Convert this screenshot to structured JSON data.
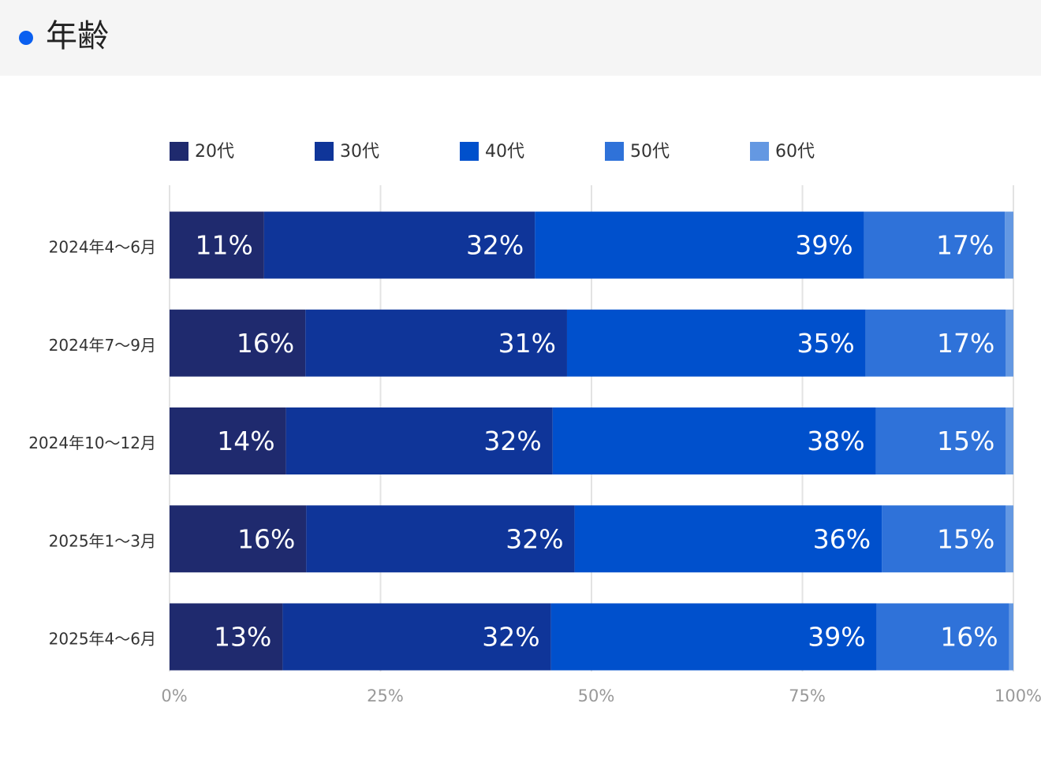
{
  "chart_data": {
    "type": "stacked-bar-horizontal",
    "title": "年齢",
    "categories": [
      "2024年4〜6月",
      "2024年7〜9月",
      "2024年10〜12月",
      "2025年1〜3月",
      "2025年4〜6月"
    ],
    "series": [
      {
        "name": "20代",
        "color": "#1f2a6e",
        "values": [
          11.2,
          16.1,
          13.8,
          16.2,
          13.4
        ],
        "value_labels": [
          "11%",
          "16%",
          "14%",
          "16%",
          "13%"
        ]
      },
      {
        "name": "30代",
        "color": "#0f3599",
        "values": [
          32.1,
          31.0,
          31.6,
          31.8,
          31.8
        ],
        "value_labels": [
          "32%",
          "31%",
          "32%",
          "32%",
          "32%"
        ]
      },
      {
        "name": "40代",
        "color": "#0050cc",
        "values": [
          39.0,
          35.4,
          38.3,
          36.4,
          38.6
        ],
        "value_labels": [
          "39%",
          "35%",
          "38%",
          "36%",
          "39%"
        ]
      },
      {
        "name": "50代",
        "color": "#2f72d9",
        "values": [
          16.7,
          16.6,
          15.4,
          14.7,
          15.7
        ],
        "value_labels": [
          "17%",
          "17%",
          "15%",
          "15%",
          "16%"
        ]
      },
      {
        "name": "60代",
        "color": "#6498e2",
        "values": [
          1.0,
          0.9,
          0.9,
          0.9,
          0.5
        ]
      }
    ],
    "xlim": [
      0,
      100
    ],
    "xticks": [
      {
        "value": 0,
        "label": "0%"
      },
      {
        "value": 25,
        "label": "25%"
      },
      {
        "value": 50,
        "label": "50%"
      },
      {
        "value": 75,
        "label": "75%"
      },
      {
        "value": 100,
        "label": "100%"
      }
    ],
    "grid": true,
    "legend": "top"
  }
}
